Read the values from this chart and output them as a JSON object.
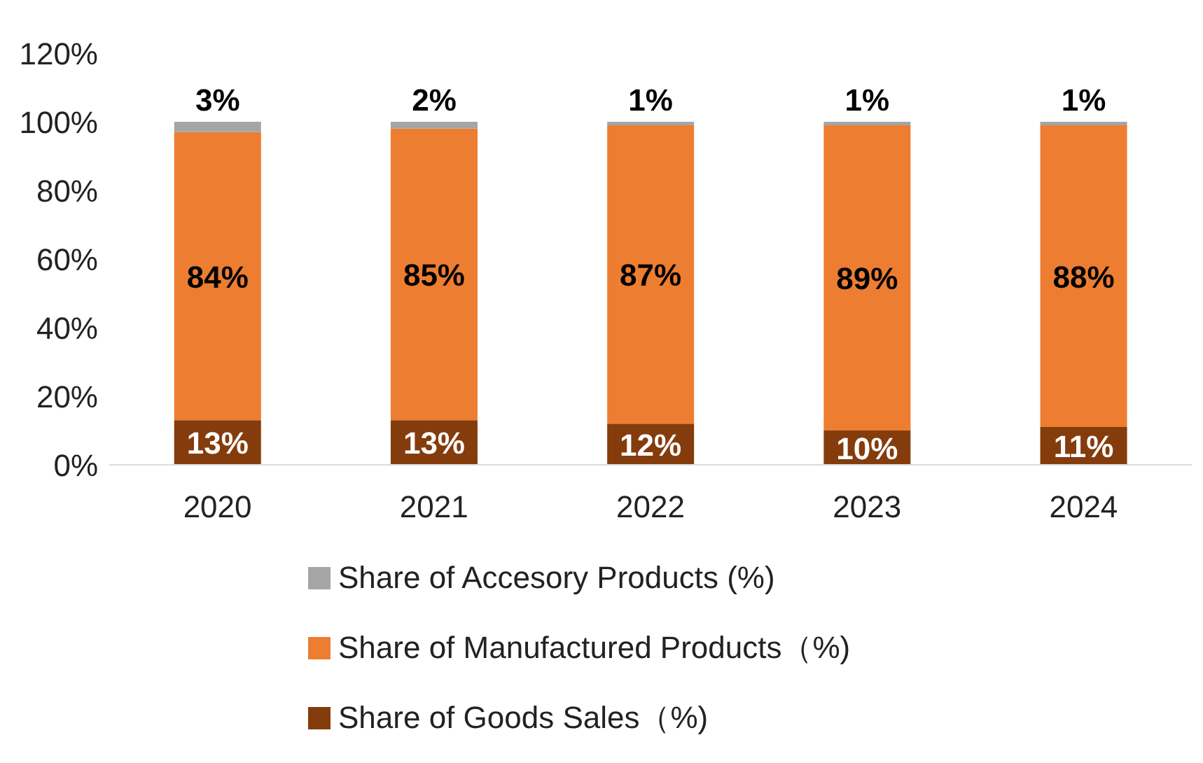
{
  "chart_data": {
    "type": "bar",
    "stacked": true,
    "categories": [
      "2020",
      "2021",
      "2022",
      "2023",
      "2024"
    ],
    "series": [
      {
        "name": "Share of Goods Sales（%)",
        "color": "#843c0c",
        "values": [
          13,
          13,
          12,
          10,
          11
        ],
        "value_labels": [
          "13%",
          "13%",
          "12%",
          "10%",
          "11%"
        ]
      },
      {
        "name": "Share of Manufactured Products（%)",
        "color": "#ed7d31",
        "values": [
          84,
          85,
          87,
          89,
          88
        ],
        "value_labels": [
          "84%",
          "85%",
          "87%",
          "89%",
          "88%"
        ]
      },
      {
        "name": "Share of Accesory Products (%)",
        "color": "#a5a5a5",
        "values": [
          3,
          2,
          1,
          1,
          1
        ],
        "value_labels": [
          "3%",
          "2%",
          "1%",
          "1%",
          "1%"
        ]
      }
    ],
    "ylim": [
      0,
      120
    ],
    "yticks": [
      {
        "value": 0,
        "label": "0%"
      },
      {
        "value": 20,
        "label": "20%"
      },
      {
        "value": 40,
        "label": "40%"
      },
      {
        "value": 60,
        "label": "60%"
      },
      {
        "value": 80,
        "label": "80%"
      },
      {
        "value": 100,
        "label": "100%"
      },
      {
        "value": 120,
        "label": "120%"
      }
    ],
    "grid": false,
    "legend": "bottom"
  }
}
